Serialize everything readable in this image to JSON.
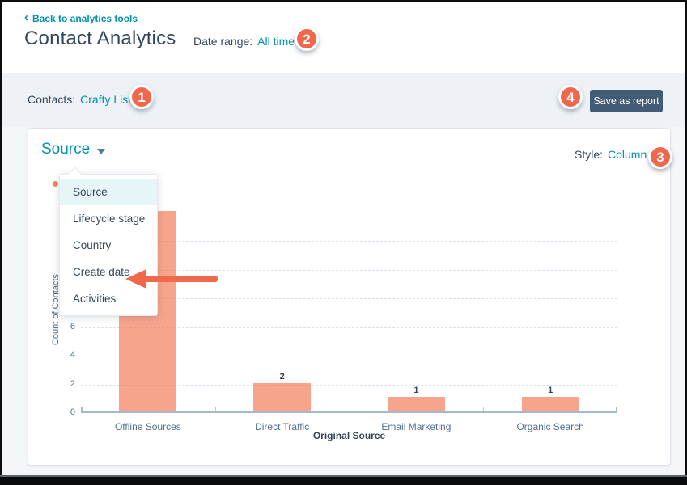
{
  "header": {
    "back_link": "Back to analytics tools",
    "title": "Contact Analytics",
    "date_range_label": "Date range:",
    "date_range_value": "All time"
  },
  "toolbar": {
    "contacts_label": "Contacts:",
    "contacts_value": "Crafty List",
    "save_report_label": "Save as report"
  },
  "panel": {
    "metric_dropdown_value": "Source",
    "style_label": "Style:",
    "style_value": "Column",
    "menu": {
      "items": [
        "Source",
        "Lifecycle stage",
        "Country",
        "Create date",
        "Activities"
      ],
      "selected": "Source"
    }
  },
  "annotations": [
    "1",
    "2",
    "3",
    "4"
  ],
  "chart_data": {
    "type": "bar",
    "title": "Source",
    "categories": [
      "Offline Sources",
      "Direct Traffic",
      "Email Marketing",
      "Organic Search"
    ],
    "values": [
      14,
      2,
      1,
      1
    ],
    "bar_labels": [
      "",
      "2",
      "1",
      "1"
    ],
    "xlabel": "Original Source",
    "ylabel": "Count of Contacts",
    "ylim": [
      0,
      14
    ],
    "ytick_step": 2,
    "visible_yticks": [
      "0",
      "2",
      "4",
      "6"
    ],
    "grid": "dashed-horizontal",
    "bar_color": "#f7a48c",
    "legend_dot_color": "#f0855f"
  },
  "colors": {
    "link_teal": "#0091ae",
    "heading_slate": "#33475b",
    "button_slate": "#425b76",
    "annotation_orange": "#f2674b",
    "arrow_orange": "#f0694d",
    "menu_highlight": "#e5f5f8",
    "toolbar_strip": "#eef2f7",
    "page_background": "#f4f7fa"
  }
}
